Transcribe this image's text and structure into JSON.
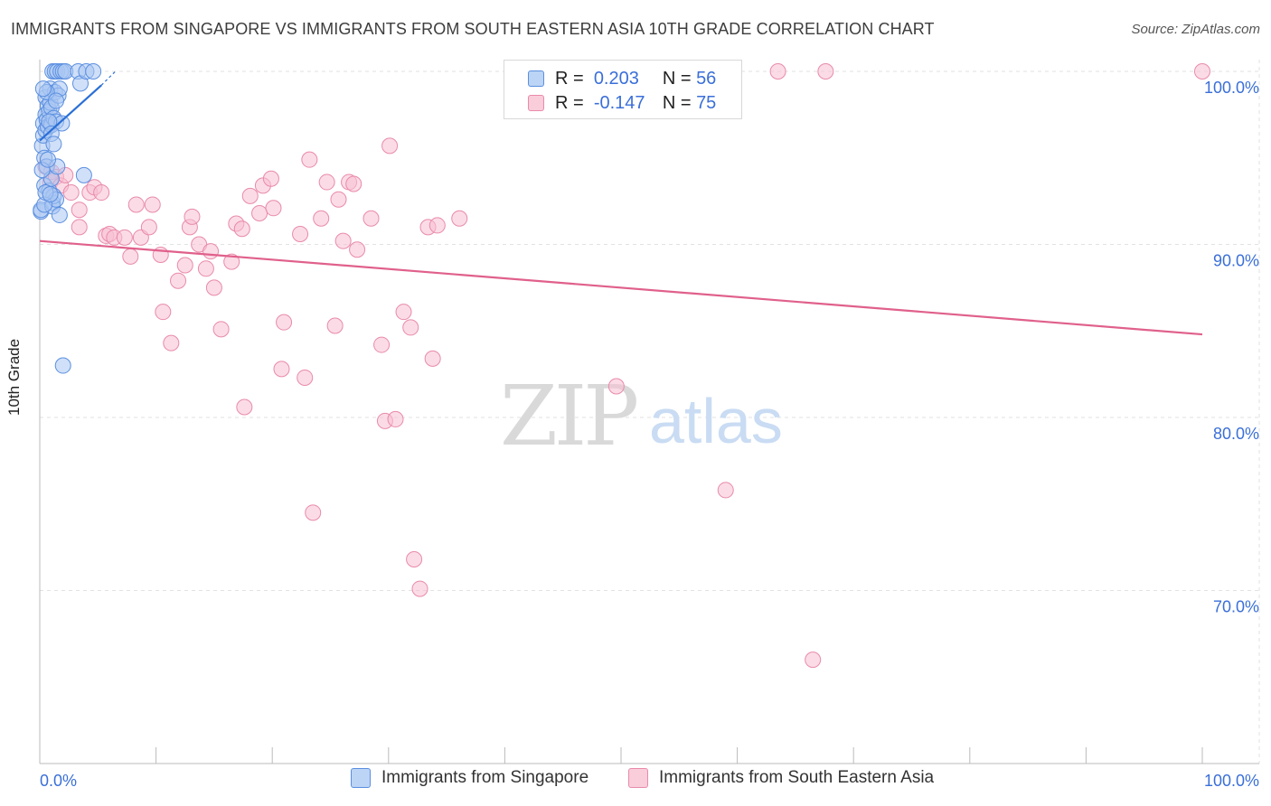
{
  "title": "IMMIGRANTS FROM SINGAPORE VS IMMIGRANTS FROM SOUTH EASTERN ASIA 10TH GRADE CORRELATION CHART",
  "source": "Source: ZipAtlas.com",
  "watermark": {
    "zip": "ZIP",
    "atlas": "atlas"
  },
  "legend": {
    "rows": [
      {
        "r_label": "R =",
        "r_value": "0.203",
        "n_label": "N =",
        "n_value": "56"
      },
      {
        "r_label": "R =",
        "r_value": "-0.147",
        "n_label": "N =",
        "n_value": "75"
      }
    ]
  },
  "colors": {
    "singapore_fill": "#a9c7f2",
    "singapore_stroke": "#5b8fe0",
    "singapore_line": "#2a6fd6",
    "sea_fill": "#f7bfd1",
    "sea_stroke": "#e98aab",
    "sea_line": "#e0608c",
    "grid": "#e2e2e2",
    "axis": "#bbbbbb",
    "tick_label": "#3a6fd8"
  },
  "chart_data": {
    "type": "scatter",
    "title": "IMMIGRANTS FROM SINGAPORE VS IMMIGRANTS FROM SOUTH EASTERN ASIA 10TH GRADE CORRELATION CHART",
    "xlabel": "",
    "ylabel": "10th Grade",
    "xlim": [
      0,
      100
    ],
    "ylim": [
      60,
      101.5
    ],
    "x_tick_labels": [
      "0.0%",
      "100.0%"
    ],
    "y_ticks": [
      70,
      80,
      90,
      100
    ],
    "y_tick_labels": [
      "70.0%",
      "80.0%",
      "90.0%",
      "100.0%"
    ],
    "grid": true,
    "legend_position": "bottom",
    "series": [
      {
        "name": "Immigrants from Singapore",
        "r": 0.203,
        "n": 56,
        "trend": {
          "x": [
            0.0,
            5.3
          ],
          "y": [
            96.0,
            99.2
          ]
        },
        "trend_dashed": {
          "x": [
            5.3,
            6.5
          ],
          "y": [
            99.2,
            100.0
          ]
        },
        "points": [
          [
            0.1,
            91.9
          ],
          [
            0.1,
            92.0
          ],
          [
            0.2,
            95.7
          ],
          [
            0.3,
            96.3
          ],
          [
            0.3,
            97.0
          ],
          [
            0.4,
            95.0
          ],
          [
            0.4,
            93.4
          ],
          [
            0.5,
            97.5
          ],
          [
            0.5,
            98.5
          ],
          [
            0.5,
            96.6
          ],
          [
            0.6,
            97.2
          ],
          [
            0.6,
            94.5
          ],
          [
            0.7,
            98.0
          ],
          [
            0.7,
            96.8
          ],
          [
            0.8,
            97.7
          ],
          [
            0.8,
            93.1
          ],
          [
            0.9,
            99.0
          ],
          [
            0.9,
            98.2
          ],
          [
            1.0,
            97.9
          ],
          [
            1.0,
            96.9
          ],
          [
            1.0,
            93.8
          ],
          [
            1.1,
            100.0
          ],
          [
            1.1,
            92.4
          ],
          [
            1.1,
            92.2
          ],
          [
            1.2,
            97.3
          ],
          [
            1.2,
            92.8
          ],
          [
            1.3,
            100.0
          ],
          [
            1.3,
            98.8
          ],
          [
            1.4,
            92.6
          ],
          [
            1.4,
            97.1
          ],
          [
            1.5,
            100.0
          ],
          [
            1.5,
            94.5
          ],
          [
            1.6,
            98.6
          ],
          [
            1.7,
            91.7
          ],
          [
            1.7,
            99.0
          ],
          [
            1.8,
            100.0
          ],
          [
            1.9,
            97.0
          ],
          [
            2.0,
            100.0
          ],
          [
            2.0,
            83.0
          ],
          [
            2.2,
            100.0
          ],
          [
            3.3,
            100.0
          ],
          [
            3.5,
            99.3
          ],
          [
            3.8,
            94.0
          ],
          [
            4.0,
            100.0
          ],
          [
            4.6,
            100.0
          ],
          [
            0.2,
            94.3
          ],
          [
            0.4,
            92.3
          ],
          [
            0.6,
            98.8
          ],
          [
            0.8,
            97.1
          ],
          [
            1.0,
            96.4
          ],
          [
            1.2,
            95.8
          ],
          [
            0.3,
            99.0
          ],
          [
            0.5,
            93.0
          ],
          [
            0.7,
            94.9
          ],
          [
            0.9,
            92.9
          ],
          [
            1.4,
            98.3
          ]
        ]
      },
      {
        "name": "Immigrants from South Eastern Asia",
        "r": -0.147,
        "n": 75,
        "trend": {
          "x": [
            0.0,
            100.0
          ],
          "y": [
            90.2,
            84.8
          ]
        },
        "points": [
          [
            0.5,
            94.5
          ],
          [
            0.9,
            93.6
          ],
          [
            1.0,
            94.2
          ],
          [
            1.4,
            93.9
          ],
          [
            1.8,
            93.4
          ],
          [
            2.2,
            94.0
          ],
          [
            2.7,
            93.0
          ],
          [
            3.4,
            92.0
          ],
          [
            4.3,
            93.0
          ],
          [
            4.7,
            93.3
          ],
          [
            5.3,
            93.0
          ],
          [
            3.4,
            91.0
          ],
          [
            5.7,
            90.5
          ],
          [
            6.0,
            90.6
          ],
          [
            6.4,
            90.4
          ],
          [
            7.3,
            90.4
          ],
          [
            7.8,
            89.3
          ],
          [
            8.3,
            92.3
          ],
          [
            8.7,
            90.4
          ],
          [
            9.4,
            91.0
          ],
          [
            9.7,
            92.3
          ],
          [
            10.4,
            89.4
          ],
          [
            10.6,
            86.1
          ],
          [
            11.3,
            84.3
          ],
          [
            11.9,
            87.9
          ],
          [
            12.5,
            88.8
          ],
          [
            12.9,
            91.0
          ],
          [
            13.1,
            91.6
          ],
          [
            13.7,
            90.0
          ],
          [
            14.3,
            88.6
          ],
          [
            14.7,
            89.6
          ],
          [
            15.0,
            87.5
          ],
          [
            15.6,
            85.1
          ],
          [
            16.5,
            89.0
          ],
          [
            16.9,
            91.2
          ],
          [
            17.4,
            90.9
          ],
          [
            17.6,
            80.6
          ],
          [
            18.1,
            92.8
          ],
          [
            18.9,
            91.8
          ],
          [
            19.2,
            93.4
          ],
          [
            19.9,
            93.8
          ],
          [
            20.1,
            92.1
          ],
          [
            20.8,
            82.8
          ],
          [
            21.0,
            85.5
          ],
          [
            22.4,
            90.6
          ],
          [
            22.8,
            82.3
          ],
          [
            23.2,
            94.9
          ],
          [
            23.5,
            74.5
          ],
          [
            24.2,
            91.5
          ],
          [
            24.7,
            93.6
          ],
          [
            25.4,
            85.3
          ],
          [
            25.7,
            92.6
          ],
          [
            26.1,
            90.2
          ],
          [
            26.6,
            93.6
          ],
          [
            27.0,
            93.5
          ],
          [
            27.3,
            89.7
          ],
          [
            28.5,
            91.5
          ],
          [
            29.4,
            84.2
          ],
          [
            29.7,
            79.8
          ],
          [
            30.1,
            95.7
          ],
          [
            30.6,
            79.9
          ],
          [
            31.3,
            86.1
          ],
          [
            31.9,
            85.2
          ],
          [
            32.2,
            71.8
          ],
          [
            32.7,
            70.1
          ],
          [
            33.4,
            91.0
          ],
          [
            33.8,
            83.4
          ],
          [
            34.2,
            91.1
          ],
          [
            36.1,
            91.5
          ],
          [
            49.6,
            81.8
          ],
          [
            59.0,
            75.8
          ],
          [
            63.5,
            100.0
          ],
          [
            66.5,
            66.0
          ],
          [
            67.6,
            100.0
          ],
          [
            100.0,
            100.0
          ]
        ]
      }
    ]
  },
  "bottom_legend": [
    {
      "label": "Immigrants from Singapore"
    },
    {
      "label": "Immigrants from South Eastern Asia"
    }
  ]
}
